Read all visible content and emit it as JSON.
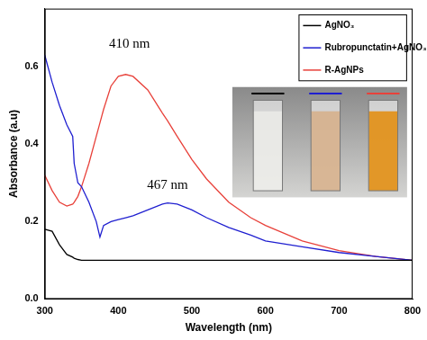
{
  "chart_data": {
    "type": "line",
    "x_label": "Wavelength (nm)",
    "y_label": "Absorbance (a.u)",
    "x": [
      300,
      310,
      320,
      330,
      338,
      340,
      345,
      350,
      360,
      370,
      375,
      380,
      390,
      400,
      410,
      420,
      440,
      460,
      467,
      480,
      500,
      520,
      550,
      580,
      600,
      650,
      700,
      750,
      800
    ],
    "series": [
      {
        "name": "AgNO₃",
        "color": "#000000",
        "values": [
          0.18,
          0.175,
          0.14,
          0.115,
          0.108,
          0.105,
          0.102,
          0.1,
          0.1,
          0.1,
          0.1,
          0.1,
          0.1,
          0.1,
          0.1,
          0.1,
          0.1,
          0.1,
          0.1,
          0.1,
          0.1,
          0.1,
          0.1,
          0.1,
          0.1,
          0.1,
          0.1,
          0.1,
          0.1
        ]
      },
      {
        "name": "Rubropunctatin+AgNO₃",
        "color": "#1f1fd0",
        "values": [
          0.63,
          0.56,
          0.5,
          0.45,
          0.42,
          0.35,
          0.3,
          0.29,
          0.25,
          0.2,
          0.16,
          0.19,
          0.2,
          0.205,
          0.21,
          0.215,
          0.23,
          0.245,
          0.248,
          0.245,
          0.23,
          0.21,
          0.185,
          0.165,
          0.15,
          0.135,
          0.12,
          0.11,
          0.1
        ]
      },
      {
        "name": "R-AgNPs",
        "color": "#e8413a",
        "values": [
          0.32,
          0.28,
          0.25,
          0.24,
          0.245,
          0.25,
          0.265,
          0.29,
          0.35,
          0.42,
          0.455,
          0.49,
          0.55,
          0.575,
          0.58,
          0.575,
          0.54,
          0.48,
          0.46,
          0.42,
          0.36,
          0.31,
          0.25,
          0.21,
          0.19,
          0.15,
          0.125,
          0.11,
          0.1
        ]
      }
    ],
    "annotations": [
      {
        "text": "410 nm",
        "x": 415,
        "y": 0.64
      },
      {
        "text": "467 nm",
        "x": 467,
        "y": 0.275
      }
    ],
    "xlim": [
      300,
      800
    ],
    "xticks": [
      300,
      400,
      500,
      600,
      700,
      800
    ],
    "ylim": [
      0,
      0.75
    ],
    "yticks": [
      {
        "value": 0,
        "label": "0.0"
      },
      0.2,
      0.4,
      0.6
    ],
    "grid": false,
    "legend": "top-right"
  }
}
